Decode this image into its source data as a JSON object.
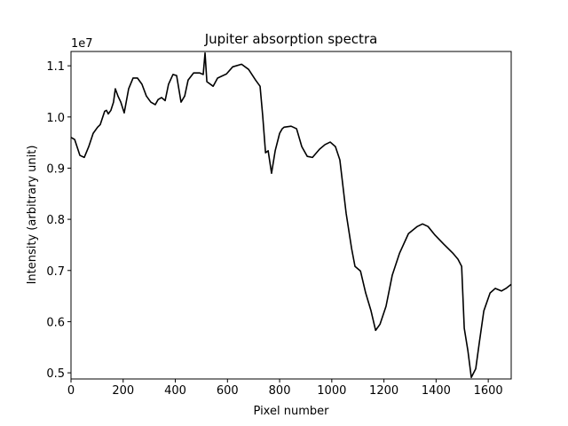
{
  "chart_data": {
    "type": "line",
    "title": "Jupiter absorption spectra",
    "x_label": "Pixel number",
    "y_label": "Intensity (arbitrary unit)",
    "y_offset_label": "1e7",
    "xlim": [
      0,
      1688
    ],
    "xticks": [
      0,
      200,
      400,
      600,
      800,
      1000,
      1200,
      1400,
      1600
    ],
    "ylim": [
      0.488,
      1.128
    ],
    "yticks": [
      0.5,
      0.6,
      0.7,
      0.8,
      0.9,
      {
        "value": 1,
        "label": "1.0"
      },
      1.1
    ],
    "grid": false,
    "series": [
      {
        "color": "#000000",
        "x": [
          0,
          14,
          34,
          51,
          68,
          85,
          102,
          112,
          129,
          136,
          143,
          153,
          163,
          170,
          180,
          191,
          204,
          221,
          238,
          255,
          272,
          289,
          306,
          323,
          334,
          347,
          361,
          374,
          391,
          405,
          422,
          436,
          449,
          470,
          494,
          507,
          514,
          521,
          545,
          562,
          596,
          620,
          654,
          681,
          708,
          725,
          735,
          746,
          756,
          769,
          783,
          800,
          810,
          817,
          844,
          865,
          885,
          906,
          926,
          953,
          974,
          994,
          1014,
          1031,
          1055,
          1076,
          1089,
          1110,
          1130,
          1150,
          1168,
          1185,
          1208,
          1232,
          1260,
          1294,
          1328,
          1348,
          1369,
          1396,
          1430,
          1464,
          1484,
          1498,
          1508,
          1522,
          1535,
          1552,
          1566,
          1583,
          1607,
          1627,
          1651,
          1668,
          1688
        ],
        "values": [
          0.96,
          0.956,
          0.925,
          0.921,
          0.942,
          0.968,
          0.98,
          0.985,
          1.011,
          1.013,
          1.006,
          1.013,
          1.029,
          1.055,
          1.041,
          1.029,
          1.008,
          1.055,
          1.076,
          1.076,
          1.064,
          1.041,
          1.029,
          1.024,
          1.034,
          1.038,
          1.032,
          1.064,
          1.083,
          1.081,
          1.029,
          1.041,
          1.072,
          1.086,
          1.086,
          1.083,
          1.125,
          1.069,
          1.06,
          1.076,
          1.084,
          1.098,
          1.103,
          1.093,
          1.072,
          1.06,
          1.003,
          0.93,
          0.934,
          0.89,
          0.934,
          0.968,
          0.977,
          0.98,
          0.982,
          0.977,
          0.942,
          0.923,
          0.921,
          0.937,
          0.946,
          0.951,
          0.942,
          0.916,
          0.812,
          0.743,
          0.708,
          0.699,
          0.656,
          0.622,
          0.583,
          0.595,
          0.63,
          0.691,
          0.734,
          0.772,
          0.786,
          0.791,
          0.786,
          0.769,
          0.751,
          0.734,
          0.722,
          0.708,
          0.587,
          0.543,
          0.491,
          0.508,
          0.56,
          0.621,
          0.656,
          0.665,
          0.66,
          0.665,
          0.673
        ]
      }
    ]
  }
}
